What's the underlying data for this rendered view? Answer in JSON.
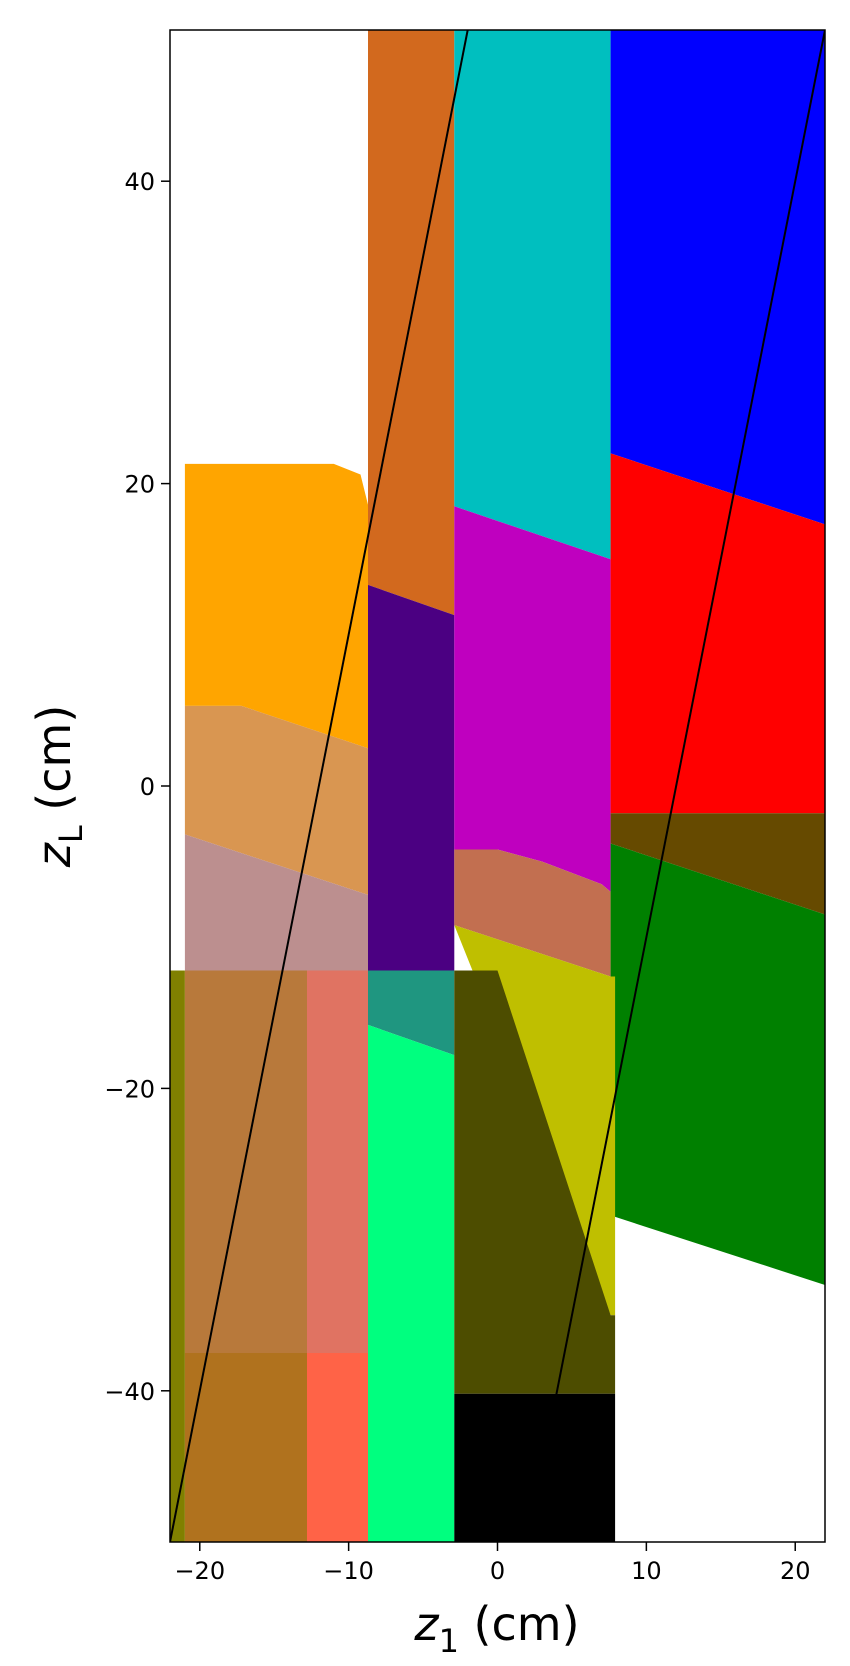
{
  "chart_data": {
    "type": "area",
    "title": "",
    "xlabel_var": "z",
    "xlabel_sub": "1",
    "xlabel_unit": " (cm)",
    "ylabel_var": "z",
    "ylabel_sub": "L",
    "ylabel_unit": " (cm)",
    "xlim": [
      -22,
      22
    ],
    "ylim": [
      -50,
      50
    ],
    "xticks": [
      -20,
      -10,
      0,
      10,
      20
    ],
    "yticks": [
      -40,
      -20,
      0,
      20,
      40
    ],
    "xtick_labels": [
      "−20",
      "−10",
      "0",
      "10",
      "20"
    ],
    "ytick_labels": [
      "−40",
      "−20",
      "0",
      "20",
      "40"
    ],
    "grid": false,
    "regions": [
      {
        "color": "#d2691e",
        "points": [
          [
            -8.7,
            50
          ],
          [
            -2.9,
            50
          ],
          [
            -2.9,
            11.3
          ],
          [
            -8.7,
            13.3
          ]
        ]
      },
      {
        "color": "#00bfbf",
        "points": [
          [
            -2.9,
            50
          ],
          [
            7.6,
            50
          ],
          [
            7.6,
            15
          ],
          [
            -2.9,
            18.5
          ]
        ]
      },
      {
        "color": "#0000ff",
        "points": [
          [
            7.6,
            50
          ],
          [
            22,
            50
          ],
          [
            22,
            17.3
          ],
          [
            7.6,
            22
          ]
        ]
      },
      {
        "color": "#ffa500",
        "points": [
          [
            -21,
            21.3
          ],
          [
            -11,
            21.3
          ],
          [
            -9.2,
            20.6
          ],
          [
            -8.7,
            18.6
          ],
          [
            -8.7,
            2.5
          ],
          [
            -17.2,
            5.3
          ],
          [
            -21,
            5.3
          ]
        ]
      },
      {
        "color": "#4b0082",
        "points": [
          [
            -8.7,
            13.3
          ],
          [
            -2.9,
            11.3
          ],
          [
            -2.9,
            -12.2
          ],
          [
            -8.7,
            -12.2
          ]
        ]
      },
      {
        "color": "#bf00bf",
        "points": [
          [
            -2.9,
            18.5
          ],
          [
            7.6,
            15
          ],
          [
            7.6,
            -7
          ],
          [
            7,
            -6.5
          ],
          [
            3,
            -5
          ],
          [
            0,
            -4.2
          ],
          [
            -2.9,
            -4.2
          ]
        ]
      },
      {
        "color": "#ff0000",
        "points": [
          [
            7.6,
            22
          ],
          [
            22,
            17.3
          ],
          [
            22,
            -1.8
          ],
          [
            7.6,
            -1.8
          ]
        ]
      },
      {
        "color": "#d99651",
        "points": [
          [
            -21,
            5.3
          ],
          [
            -17.2,
            5.3
          ],
          [
            -8.7,
            2.5
          ],
          [
            -8.7,
            -7.2
          ],
          [
            -21,
            -3.2
          ]
        ]
      },
      {
        "color": "#bc8f8f",
        "points": [
          [
            -21,
            -3.2
          ],
          [
            -8.7,
            -7.2
          ],
          [
            -8.7,
            -12.2
          ],
          [
            -21,
            -12.2
          ]
        ]
      },
      {
        "color": "#c26f50",
        "points": [
          [
            -2.9,
            -4.2
          ],
          [
            0,
            -4.2
          ],
          [
            3,
            -5
          ],
          [
            7,
            -6.5
          ],
          [
            7.6,
            -7
          ],
          [
            7.6,
            -12.6
          ],
          [
            -2.9,
            -9.2
          ]
        ]
      },
      {
        "color": "#664a00",
        "points": [
          [
            7.6,
            -1.8
          ],
          [
            22,
            -1.8
          ],
          [
            22,
            -8.5
          ],
          [
            7.6,
            -3.8
          ]
        ]
      },
      {
        "color": "#008000",
        "points": [
          [
            7.6,
            -3.8
          ],
          [
            22,
            -8.5
          ],
          [
            22,
            -33
          ],
          [
            7.6,
            -28.4
          ]
        ]
      },
      {
        "color": "#bfbf00",
        "points": [
          [
            -2.9,
            -9.2
          ],
          [
            7.6,
            -12.6
          ],
          [
            7.9,
            -12.6
          ],
          [
            7.9,
            -35
          ],
          [
            7.6,
            -35
          ]
        ]
      },
      {
        "color": "#808000",
        "points": [
          [
            -22,
            -12.2
          ],
          [
            -21,
            -12.2
          ],
          [
            -21,
            -50
          ],
          [
            -22,
            -50
          ]
        ]
      },
      {
        "color": "#b8793b",
        "points": [
          [
            -21,
            -12.2
          ],
          [
            -12.8,
            -12.2
          ],
          [
            -12.8,
            -37.5
          ],
          [
            -21,
            -37.5
          ]
        ]
      },
      {
        "color": "#b0721e",
        "points": [
          [
            -21,
            -37.5
          ],
          [
            -12.8,
            -37.5
          ],
          [
            -12.8,
            -50
          ],
          [
            -21,
            -50
          ]
        ]
      },
      {
        "color": "#e07362",
        "points": [
          [
            -12.8,
            -12.2
          ],
          [
            -8.7,
            -12.2
          ],
          [
            -8.7,
            -37.5
          ],
          [
            -12.8,
            -37.5
          ]
        ]
      },
      {
        "color": "#ff6347",
        "points": [
          [
            -12.8,
            -37.5
          ],
          [
            -8.7,
            -37.5
          ],
          [
            -8.7,
            -50
          ],
          [
            -12.8,
            -50
          ]
        ]
      },
      {
        "color": "#1f9680",
        "points": [
          [
            -8.7,
            -12.2
          ],
          [
            -2.9,
            -12.2
          ],
          [
            -2.9,
            -17.8
          ],
          [
            -8.7,
            -15.8
          ]
        ]
      },
      {
        "color": "#00ff7f",
        "points": [
          [
            -8.7,
            -15.8
          ],
          [
            -2.9,
            -17.8
          ],
          [
            -2.9,
            -50
          ],
          [
            -8.7,
            -50
          ]
        ]
      },
      {
        "color": "#4d4d00",
        "points": [
          [
            -2.9,
            -12.2
          ],
          [
            0,
            -12.2
          ],
          [
            7.6,
            -35
          ],
          [
            7.9,
            -35
          ],
          [
            7.9,
            -40.2
          ],
          [
            -2.9,
            -40.2
          ]
        ]
      },
      {
        "color": "#000000",
        "points": [
          [
            -2.9,
            -40.2
          ],
          [
            7.9,
            -40.2
          ],
          [
            7.9,
            -50
          ],
          [
            -2.9,
            -50
          ]
        ]
      }
    ],
    "lines": [
      {
        "color": "#000000",
        "points": [
          [
            -22,
            -50
          ],
          [
            -2,
            50
          ]
        ]
      },
      {
        "color": "#000000",
        "points": [
          [
            2,
            -50
          ],
          [
            22,
            50
          ]
        ]
      }
    ]
  }
}
